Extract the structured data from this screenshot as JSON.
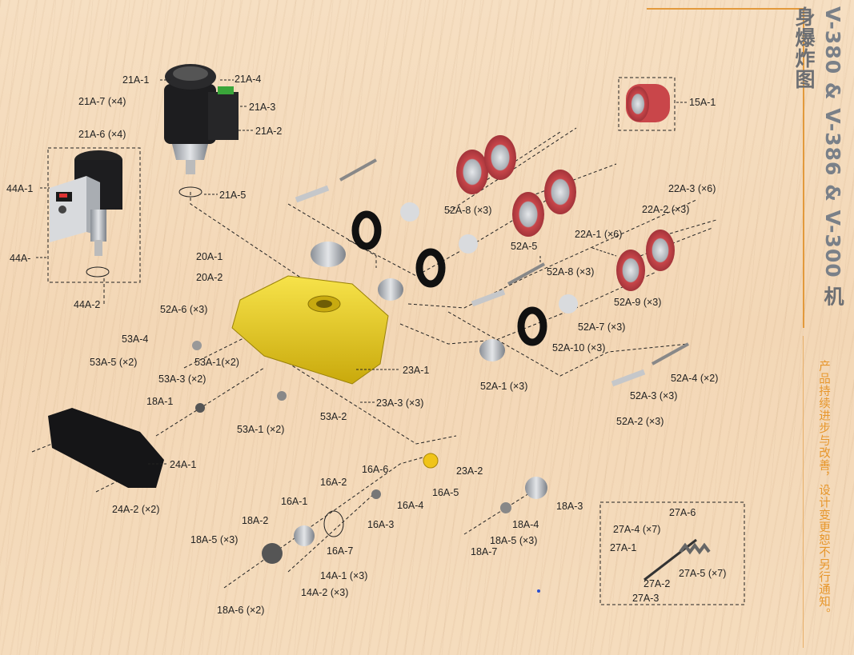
{
  "title": {
    "models": "V-380 & V-386 & V-300",
    "subtitle": "机身爆炸图"
  },
  "notice": "产品持续进步与改善，设计变更恕不另行通知。",
  "colors": {
    "wood_bg": "#f4d9b9",
    "accent": "#e39a3c",
    "body_yellow": "#f2d318",
    "roller_red": "#c9464a",
    "label": "#222222"
  },
  "labels": {
    "21A-1": "21A-1",
    "21A-4": "21A-4",
    "21A-7": "21A-7 (×4)",
    "21A-3": "21A-3",
    "21A-6": "21A-6 (×4)",
    "21A-2": "21A-2",
    "21A-5": "21A-5",
    "15A-1": "15A-1",
    "44A-1": "44A-1",
    "44A": "44A-",
    "44A-2": "44A-2",
    "22A-3": "22A-3 (×6)",
    "22A-2": "22A-2 (×3)",
    "52A-8a": "52A-8 (×3)",
    "22A-1": "22A-1 (×6)",
    "52A-5": "52A-5",
    "20A-1": "20A-1",
    "52A-8b": "52A-8 (×3)",
    "20A-2": "20A-2",
    "52A-9": "52A-9 (×3)",
    "52A-6": "52A-6 (×3)",
    "52A-7": "52A-7 (×3)",
    "53A-4": "53A-4",
    "52A-10": "52A-10 (×3)",
    "53A-5": "53A-5 (×2)",
    "53A-1a": "53A-1(×2)",
    "23A-1": "23A-1",
    "52A-4": "52A-4 (×2)",
    "53A-3": "53A-3 (×2)",
    "52A-1": "52A-1 (×3)",
    "52A-3": "52A-3 (×3)",
    "18A-1": "18A-1",
    "23A-3": "23A-3 (×3)",
    "53A-2": "53A-2",
    "52A-2": "52A-2 (×3)",
    "53A-1b": "53A-1 (×2)",
    "24A-1": "24A-1",
    "16A-6": "16A-6",
    "23A-2": "23A-2",
    "16A-2": "16A-2",
    "16A-5": "16A-5",
    "24A-2": "24A-2 (×2)",
    "16A-1": "16A-1",
    "16A-4": "16A-4",
    "18A-3": "18A-3",
    "16A-3": "16A-3",
    "27A-6": "27A-6",
    "18A-2": "18A-2",
    "18A-4": "18A-4",
    "27A-4": "27A-4 (×7)",
    "16A-7": "16A-7",
    "18A-5a": "18A-5 (×3)",
    "18A-5b": "18A-5 (×3)",
    "27A-1": "27A-1",
    "18A-7": "18A-7",
    "14A-1": "14A-1 (×3)",
    "27A-5": "27A-5 (×7)",
    "27A-2": "27A-2",
    "14A-2": "14A-2 (×3)",
    "27A-3": "27A-3",
    "18A-6": "18A-6 (×2)"
  }
}
